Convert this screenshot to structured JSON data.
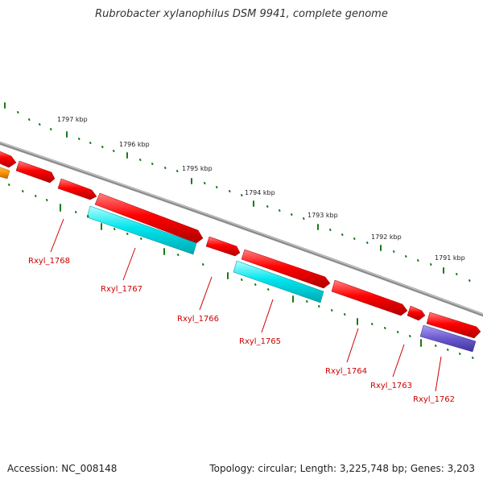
{
  "title": "Rubrobacter xylanophilus DSM 9941, complete genome",
  "footer": {
    "accession": "Accession: NC_008148",
    "topology": "Topology: circular; Length: 3,225,748 bp; Genes: 3,203"
  },
  "colors": {
    "backbone": "#8c8c8c",
    "tick": "#1a7a1a",
    "gene_red": "#ff0000",
    "gene_cyan": "#00e5ee",
    "gene_orange": "#ff9900",
    "gene_purple": "#6a5acd",
    "label": "#cc0000"
  },
  "ruler_labels": [
    "1797 kbp",
    "1796 kbp",
    "1795 kbp",
    "1794 kbp",
    "1793 kbp",
    "1792 kbp",
    "1791 kbp"
  ],
  "genes": [
    {
      "id": "Rxyl_1768",
      "color": "red"
    },
    {
      "id": "Rxyl_1767",
      "color": "cyan"
    },
    {
      "id": "Rxyl_1766",
      "color": "red"
    },
    {
      "id": "Rxyl_1765",
      "color": "cyan"
    },
    {
      "id": "Rxyl_1764",
      "color": "red"
    },
    {
      "id": "Rxyl_1763",
      "color": "red"
    },
    {
      "id": "Rxyl_1762",
      "color": "purple"
    }
  ]
}
